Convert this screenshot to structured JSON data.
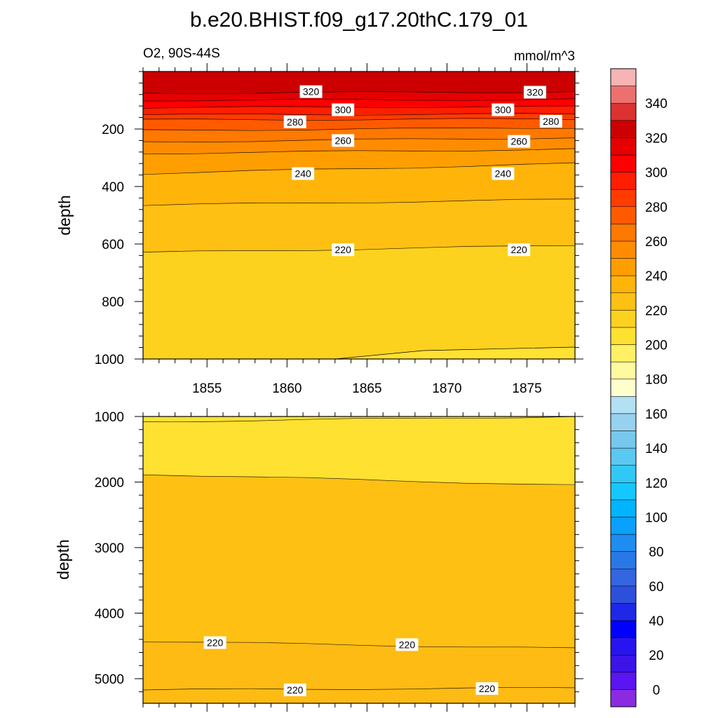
{
  "chart_data": {
    "type": "contour",
    "title": "b.e20.BHIST.f09_g17.20thC.179_01",
    "variable_label": "O2, 90S-44S",
    "units_label": "mmol/m^3",
    "x_axis": {
      "range": [
        1851,
        1878
      ],
      "ticks": [
        1855,
        1860,
        1865,
        1870,
        1875
      ],
      "tick_labels": [
        "1855",
        "1860",
        "1865",
        "1870",
        "1875"
      ]
    },
    "panels": [
      {
        "name": "upper",
        "ylabel": "depth",
        "ylim": [
          0,
          1000
        ],
        "y_ticks": [
          200,
          400,
          600,
          800,
          1000
        ],
        "y_tick_labels": [
          "200",
          "400",
          "600",
          "800",
          "1000"
        ],
        "contour_lines": [
          {
            "level": 320,
            "depth_1851": 75,
            "depth_1878": 70
          },
          {
            "level": 310,
            "depth_1851": 100,
            "depth_1878": 97
          },
          {
            "level": 300,
            "depth_1851": 125,
            "depth_1878": 122
          },
          {
            "level": 290,
            "depth_1851": 150,
            "depth_1878": 148
          },
          {
            "level": 280,
            "depth_1851": 168,
            "depth_1878": 165
          },
          {
            "level": 270,
            "depth_1851": 205,
            "depth_1878": 195
          },
          {
            "level": 260,
            "depth_1851": 245,
            "depth_1878": 230
          },
          {
            "level": 250,
            "depth_1851": 285,
            "depth_1878": 270
          },
          {
            "level": 240,
            "depth_1851": 355,
            "depth_1878": 320
          },
          {
            "level": 230,
            "depth_1851": 465,
            "depth_1878": 445
          },
          {
            "level": 220,
            "depth_1851": 630,
            "depth_1878": 605
          }
        ],
        "contour_labels": [
          {
            "text": "320",
            "year": 1861.5,
            "depth": 70
          },
          {
            "text": "320",
            "year": 1875.5,
            "depth": 72
          },
          {
            "text": "300",
            "year": 1863.5,
            "depth": 133
          },
          {
            "text": "300",
            "year": 1873.5,
            "depth": 133
          },
          {
            "text": "280",
            "year": 1860.5,
            "depth": 175
          },
          {
            "text": "280",
            "year": 1876.5,
            "depth": 173
          },
          {
            "text": "260",
            "year": 1863.5,
            "depth": 240
          },
          {
            "text": "260",
            "year": 1874.5,
            "depth": 243
          },
          {
            "text": "240",
            "year": 1861.0,
            "depth": 355
          },
          {
            "text": "240",
            "year": 1873.5,
            "depth": 355
          },
          {
            "text": "220",
            "year": 1863.5,
            "depth": 620
          },
          {
            "text": "220",
            "year": 1874.5,
            "depth": 620
          }
        ]
      },
      {
        "name": "lower",
        "ylabel": "depth",
        "ylim": [
          1000,
          5375
        ],
        "y_ticks": [
          1000,
          2000,
          3000,
          4000,
          5000
        ],
        "y_tick_labels": [
          "1000",
          "2000",
          "3000",
          "4000",
          "5000"
        ],
        "contour_lines": [
          {
            "level": 210,
            "depth_1851": 1080,
            "depth_1878": 1000
          },
          {
            "level": 220,
            "depth_1851": 1880,
            "depth_1878": 2050
          },
          {
            "level": 220,
            "depth_1851": 4430,
            "depth_1878": 4540
          },
          {
            "level": 220,
            "depth_1851": 5170,
            "depth_1878": 5140
          }
        ],
        "contour_labels": [
          {
            "text": "220",
            "year": 1855.5,
            "depth": 4450
          },
          {
            "text": "220",
            "year": 1867.5,
            "depth": 4480
          },
          {
            "text": "220",
            "year": 1860.5,
            "depth": 5170
          },
          {
            "text": "220",
            "year": 1872.5,
            "depth": 5150
          }
        ]
      }
    ],
    "colorbar": {
      "levels": [
        -10,
        0,
        10,
        20,
        30,
        40,
        50,
        60,
        70,
        80,
        90,
        100,
        110,
        120,
        130,
        140,
        150,
        160,
        170,
        180,
        190,
        200,
        210,
        220,
        230,
        240,
        250,
        260,
        270,
        280,
        290,
        300,
        310,
        320,
        330,
        340,
        350,
        360
      ],
      "colors": [
        "#8a2be2",
        "#5b14f2",
        "#3c14e6",
        "#2814f0",
        "#0000ff",
        "#1e28e6",
        "#2d50dc",
        "#3366e0",
        "#2878e6",
        "#1e8cf0",
        "#0aa0ff",
        "#00b4ff",
        "#14c8ff",
        "#32c8f5",
        "#5ac8f0",
        "#78c8ee",
        "#96d2f0",
        "#b4e0f4",
        "#ffffcc",
        "#fffaa0",
        "#fff064",
        "#ffe132",
        "#fdd21e",
        "#ffc014",
        "#ffb40a",
        "#ff9e00",
        "#ff8c00",
        "#ff7800",
        "#ff5a00",
        "#ff3c00",
        "#ff1e00",
        "#ff0000",
        "#e60000",
        "#cc0000",
        "#dc3232",
        "#ec7070",
        "#f8b4b4"
      ],
      "label_values": [
        0,
        20,
        40,
        60,
        80,
        100,
        120,
        140,
        160,
        180,
        200,
        220,
        240,
        260,
        280,
        300,
        320,
        340
      ],
      "label_texts": [
        "0",
        "20",
        "40",
        "60",
        "80",
        "100",
        "120",
        "140",
        "160",
        "180",
        "200",
        "220",
        "240",
        "260",
        "280",
        "300",
        "320",
        "340"
      ]
    }
  }
}
